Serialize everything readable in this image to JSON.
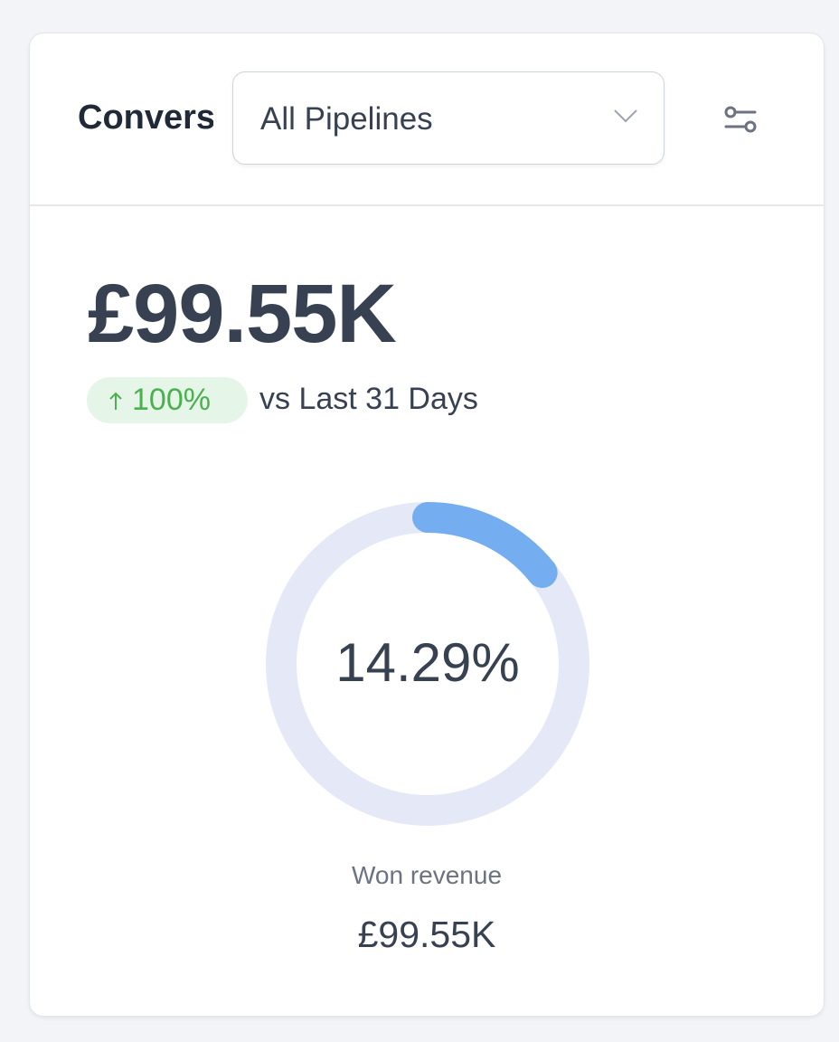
{
  "header": {
    "title": "Convers",
    "dropdown": "All Pipelines"
  },
  "metric": {
    "value": "£99.55K",
    "change": "100%",
    "comparison": "vs Last 31 Days"
  },
  "gauge": {
    "value": 14.29,
    "label": "14.29%"
  },
  "footer": {
    "label": "Won revenue",
    "value": "£99.55K"
  }
}
